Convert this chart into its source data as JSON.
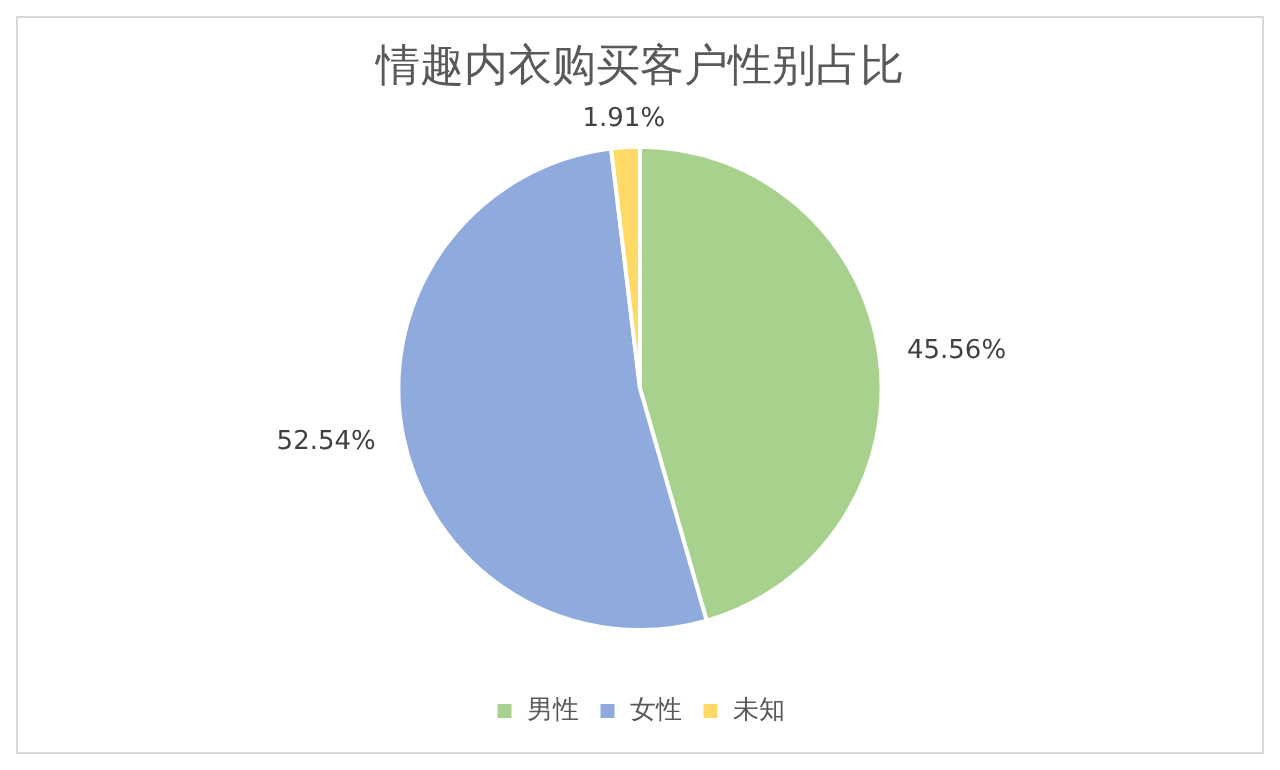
{
  "chart_data": {
    "type": "pie",
    "title": "情趣内衣购买客户性别占比",
    "categories": [
      "男性",
      "女性",
      "未知"
    ],
    "values": [
      45.56,
      52.54,
      1.91
    ],
    "colors": [
      "#a9d18e",
      "#8faadc",
      "#ffd966"
    ],
    "value_labels": [
      "45.56%",
      "52.54%",
      "1.91%"
    ],
    "legend": "bottom"
  }
}
